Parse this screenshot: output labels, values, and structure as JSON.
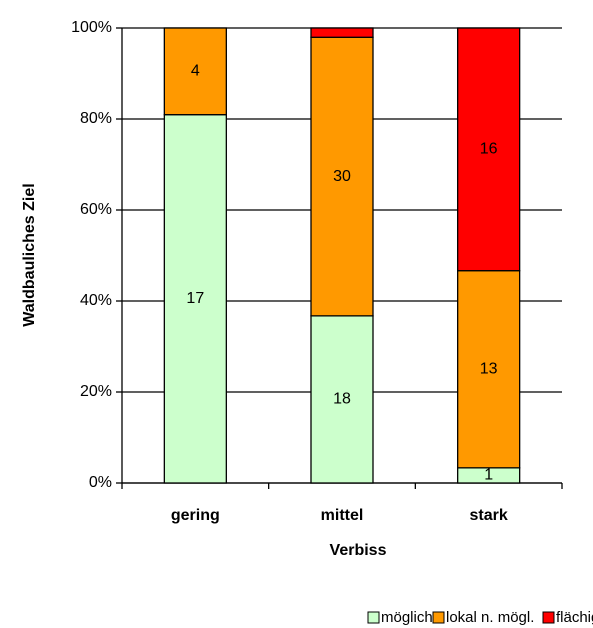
{
  "chart_data": {
    "type": "stacked_percent_bar",
    "x_label": "Verbiss",
    "y_label": "Waldbauliches Ziel",
    "categories": [
      "gering",
      "mittel",
      "stark"
    ],
    "series": [
      {
        "name": "möglich",
        "color": "#ccffcc",
        "values": [
          17,
          18,
          1
        ]
      },
      {
        "name": "lokal n. mögl.",
        "color": "#ff9900",
        "values": [
          4,
          30,
          13
        ]
      },
      {
        "name": "flächig n. mögl.",
        "color": "#ff0000",
        "values": [
          0,
          1,
          16
        ]
      }
    ],
    "ylim": [
      0,
      100
    ],
    "yticks": [
      {
        "value": 0,
        "label": "0%"
      },
      {
        "value": 20,
        "label": "20%"
      },
      {
        "value": 40,
        "label": "40%"
      },
      {
        "value": 60,
        "label": "60%"
      },
      {
        "value": 80,
        "label": "80%"
      },
      {
        "value": 100,
        "label": "100%"
      }
    ],
    "grid": true,
    "legend": "bottom"
  }
}
